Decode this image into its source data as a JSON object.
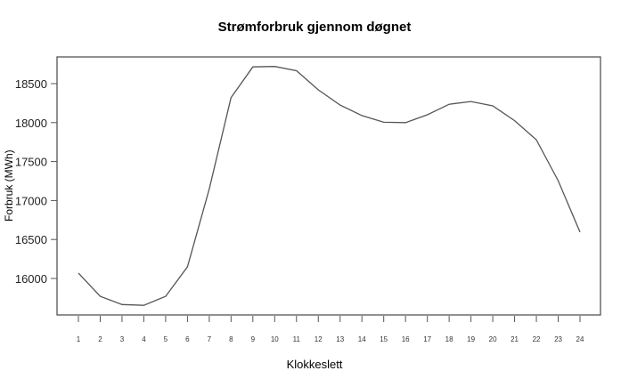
{
  "chart_data": {
    "type": "line",
    "title": "Strømforbruk gjennom døgnet",
    "xlabel": "Klokkeslett",
    "ylabel": "Forbruk (MWh)",
    "x": [
      1,
      2,
      3,
      4,
      5,
      6,
      7,
      8,
      9,
      10,
      11,
      12,
      13,
      14,
      15,
      16,
      17,
      18,
      19,
      20,
      21,
      22,
      23,
      24
    ],
    "categories": [
      "1",
      "2",
      "3",
      "4",
      "5",
      "6",
      "7",
      "8",
      "9",
      "10",
      "11",
      "12",
      "13",
      "14",
      "15",
      "16",
      "17",
      "18",
      "19",
      "20",
      "21",
      "22",
      "23",
      "24"
    ],
    "series": [
      {
        "name": "Forbruk (MWh)",
        "values": [
          16070,
          15770,
          15665,
          15655,
          15770,
          16150,
          17150,
          18320,
          18715,
          18720,
          18665,
          18420,
          18225,
          18090,
          18005,
          18000,
          18100,
          18235,
          18270,
          18215,
          18025,
          17780,
          17255,
          16595
        ],
        "color": "#555555"
      }
    ],
    "yticks": [
      16000,
      16500,
      17000,
      17500,
      18000,
      18500
    ],
    "ytick_labels": [
      "16000",
      "16500",
      "17000",
      "17500",
      "18000",
      "18500"
    ],
    "ylim": [
      15530,
      18880
    ],
    "xlim": [
      0.0,
      25.0
    ],
    "grid": false,
    "legend": null
  }
}
